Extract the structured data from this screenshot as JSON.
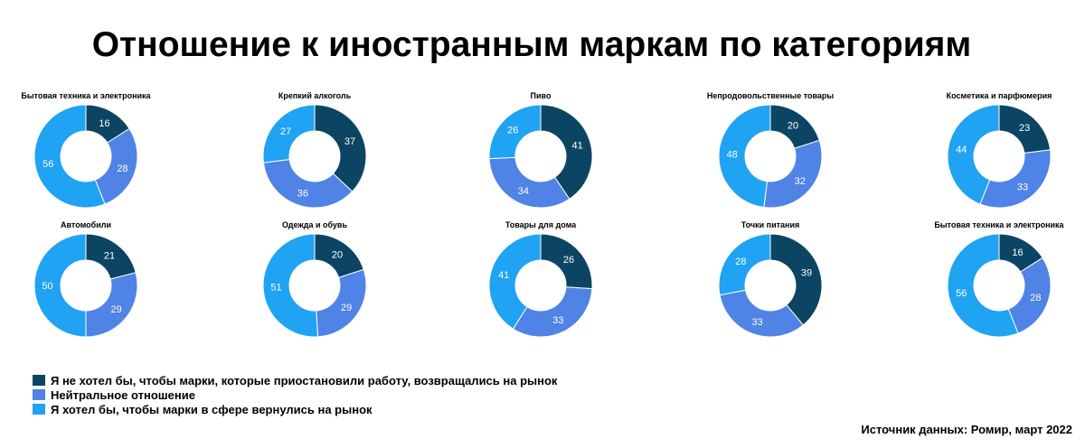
{
  "title": "Отношение к иностранным маркам по категориям",
  "source": "Источник данных: Ромир, март 2022",
  "colors": {
    "dark": "#0b4563",
    "mid": "#4f83e6",
    "light": "#1fa3f2"
  },
  "chart_data": {
    "type": "donut",
    "series_names": [
      "Я не хотел бы, чтобы марки, которые приостановили работу, возвращались на рынок",
      "Нейтральное отношение",
      "Я хотел бы, чтобы марки в сфере вернулись на рынок"
    ],
    "charts": [
      {
        "title": "Бытовая техника и электроника",
        "values": [
          16,
          28,
          56
        ]
      },
      {
        "title": "Крепкий алкоголь",
        "values": [
          37,
          36,
          27
        ]
      },
      {
        "title": "Пиво",
        "values": [
          41,
          34,
          26
        ]
      },
      {
        "title": "Непродовольственные товары",
        "values": [
          20,
          32,
          48
        ]
      },
      {
        "title": "Косметика и парфюмерия",
        "values": [
          23,
          33,
          44
        ]
      },
      {
        "title": "Автомобили",
        "values": [
          21,
          29,
          50
        ]
      },
      {
        "title": "Одежда и обувь",
        "values": [
          20,
          29,
          51
        ]
      },
      {
        "title": "Товары для дома",
        "values": [
          26,
          33,
          41
        ]
      },
      {
        "title": "Точки питания",
        "values": [
          39,
          33,
          28
        ]
      },
      {
        "title": "Бытовая техника и электроника",
        "values": [
          16,
          28,
          56
        ]
      }
    ]
  }
}
